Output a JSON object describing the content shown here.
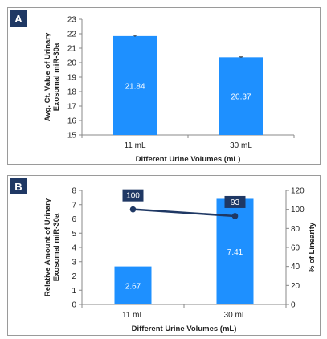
{
  "chart_data": [
    {
      "panel_label": "A",
      "type": "bar",
      "categories": [
        "11 mL",
        "30 mL"
      ],
      "values": [
        21.84,
        20.37
      ],
      "data_labels": [
        "21.84",
        "20.37"
      ],
      "error_bars": [
        0.05,
        0.03
      ],
      "ylabel_lines": [
        "Avg. Ct. Value of Urinary",
        "Exosomal miR-30a"
      ],
      "xlabel": "Different Urine Volumes (mL)",
      "ylim": [
        15,
        23
      ],
      "yticks": [
        15,
        16,
        17,
        18,
        19,
        20,
        21,
        22,
        23
      ],
      "bar_color": "#1e90ff",
      "grid": false,
      "legend": "none"
    },
    {
      "panel_label": "B",
      "type": "bar+line",
      "categories": [
        "11 mL",
        "30 mL"
      ],
      "series": [
        {
          "kind": "bar",
          "axis": "left",
          "values": [
            2.67,
            7.41
          ],
          "labels": [
            "2.67",
            "7.41"
          ],
          "color": "#1e90ff"
        },
        {
          "kind": "line",
          "axis": "right",
          "values": [
            100,
            93
          ],
          "labels": [
            "100",
            "93"
          ],
          "color": "#1f3864"
        }
      ],
      "ylabel_lines": [
        "Relative Amount of Urinary",
        "Exosomal miR-30a"
      ],
      "y2label": "% of Linearity",
      "xlabel": "Different Urine Volumes (mL)",
      "ylim": [
        0,
        8
      ],
      "yticks": [
        0,
        1,
        2,
        3,
        4,
        5,
        6,
        7,
        8
      ],
      "y2lim": [
        0,
        120
      ],
      "y2ticks": [
        0,
        20,
        40,
        60,
        80,
        100,
        120
      ],
      "grid": false,
      "legend": "none"
    }
  ]
}
